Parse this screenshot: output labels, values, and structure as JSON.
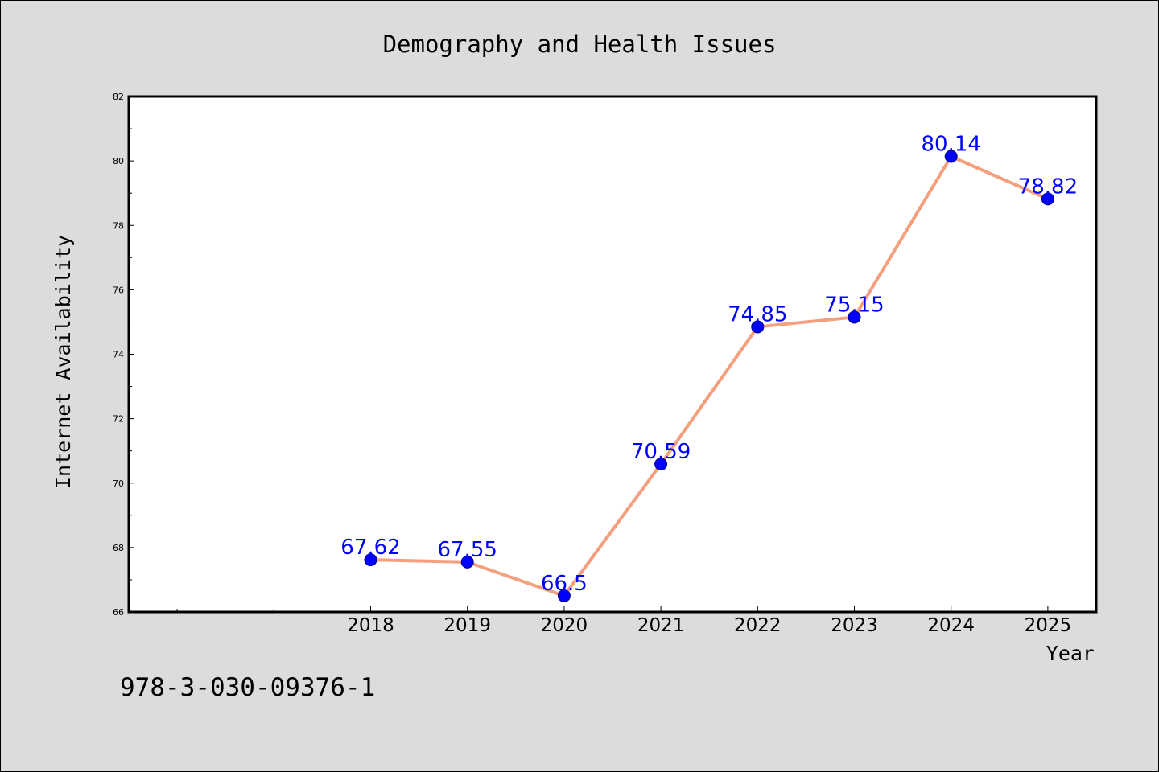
{
  "colors": {
    "background": "#dcdcdc",
    "plot_background": "#ffffff",
    "line": "#f4a07e",
    "marker": "#0000ff",
    "data_label": "#0000ff",
    "text": "#000000"
  },
  "footer": {
    "isbn": "978-3-030-09376-1"
  },
  "chart_data": {
    "type": "line",
    "title": "Demography and Health Issues",
    "xlabel": "Year",
    "ylabel": "Internet Availability",
    "x_range": [
      2015.5,
      2025.5
    ],
    "ylim": [
      66,
      82
    ],
    "y_ticks": [
      66,
      68,
      70,
      72,
      74,
      76,
      78,
      80,
      82
    ],
    "x": [
      2018,
      2019,
      2020,
      2021,
      2022,
      2023,
      2024,
      2025
    ],
    "x_tick_labels": [
      "2018",
      "2019",
      "2020",
      "2021",
      "2022",
      "2023",
      "2024",
      "2025"
    ],
    "series": [
      {
        "values": [
          67.62,
          67.55,
          66.5,
          70.59,
          74.85,
          75.15,
          80.14,
          78.82
        ],
        "labels": [
          "67.62",
          "67.55",
          "66.5",
          "70.59",
          "74.85",
          "75.15",
          "80.14",
          "78.82"
        ]
      }
    ],
    "grid": false,
    "legend": "none"
  }
}
